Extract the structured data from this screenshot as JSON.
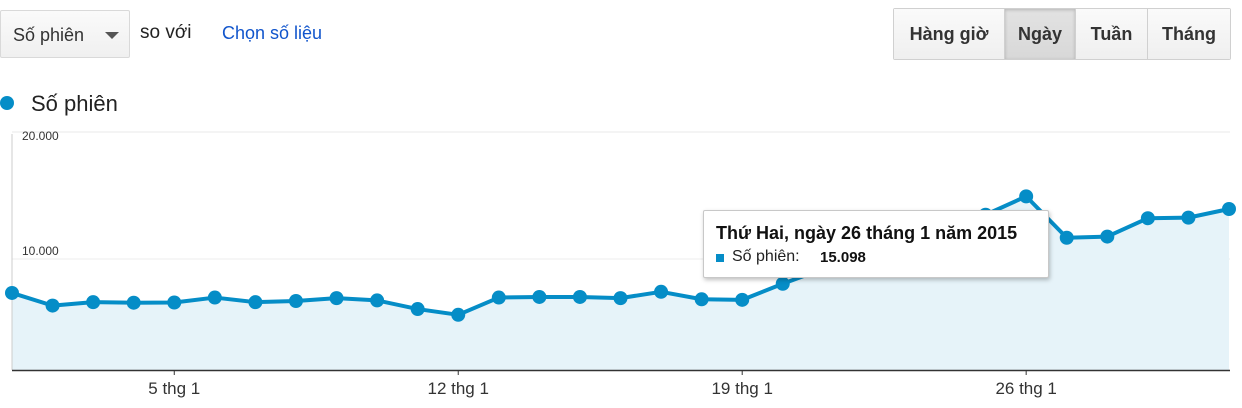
{
  "controls": {
    "metric_select": "Số phiên",
    "compare_text": "so với",
    "choose_metric_link": "Chọn số liệu",
    "periods": [
      "Hàng giờ",
      "Ngày",
      "Tuần",
      "Tháng"
    ],
    "active_period": "Ngày"
  },
  "colors": {
    "series": "#058dc7",
    "area_fill": "#e6f3f9",
    "link": "#1155cc"
  },
  "chart_data": {
    "type": "area",
    "legend": [
      "Số phiên"
    ],
    "x": [
      "1 thg 1",
      "2 thg 1",
      "3 thg 1",
      "4 thg 1",
      "5 thg 1",
      "6 thg 1",
      "7 thg 1",
      "8 thg 1",
      "9 thg 1",
      "10 thg 1",
      "11 thg 1",
      "12 thg 1",
      "13 thg 1",
      "14 thg 1",
      "15 thg 1",
      "16 thg 1",
      "17 thg 1",
      "18 thg 1",
      "19 thg 1",
      "20 thg 1",
      "21 thg 1",
      "22 thg 1",
      "23 thg 1",
      "24 thg 1",
      "25 thg 1",
      "26 thg 1",
      "27 thg 1",
      "28 thg 1",
      "29 thg 1",
      "30 thg 1",
      "31 thg 1"
    ],
    "series": [
      {
        "name": "Số phiên",
        "values": [
          6700,
          5600,
          5900,
          5850,
          5870,
          6300,
          5900,
          6000,
          6250,
          6050,
          5300,
          4800,
          6300,
          6350,
          6350,
          6250,
          6800,
          6150,
          6100,
          7500,
          8800,
          10500,
          11800,
          12500,
          13500,
          15098,
          11500,
          11600,
          13200,
          13250,
          14000
        ]
      }
    ],
    "x_tick_labels": [
      "5 thg 1",
      "12 thg 1",
      "19 thg 1",
      "26 thg 1"
    ],
    "y_tick_labels": [
      "10.000",
      "20.000"
    ],
    "ylim": [
      0,
      20000
    ],
    "grid": true,
    "tooltip": {
      "title": "Thứ Hai, ngày 26 tháng 1 năm 2015",
      "series_label": "Số phiên:",
      "value": "15.098"
    }
  }
}
